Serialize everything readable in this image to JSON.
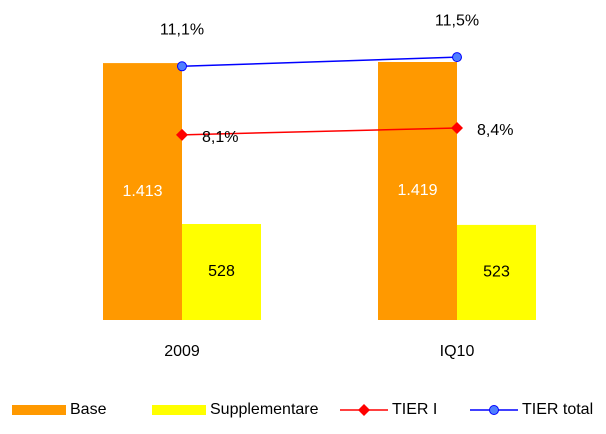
{
  "chart_data": {
    "type": "bar-line",
    "categories": [
      "2009",
      "IQ10"
    ],
    "ylim": [
      0,
      1760
    ],
    "y2lim": [
      0,
      14
    ],
    "legend": "bottom",
    "series": [
      {
        "name": "Base",
        "type": "bar",
        "color": "#ff9900",
        "values": [
          1413,
          1419
        ],
        "value_labels": [
          "1.413",
          "1.419"
        ]
      },
      {
        "name": "Supplementare",
        "type": "bar",
        "color": "#ffff00",
        "values": [
          528,
          523
        ]
      },
      {
        "name": "TIER I",
        "type": "line",
        "axis": "y2",
        "color": "#ff0000",
        "values": [
          8.1,
          8.4
        ],
        "value_labels": [
          "8,1%",
          "8,4%"
        ]
      },
      {
        "name": "TIER total",
        "type": "line",
        "axis": "y2",
        "color": "#0000ff",
        "values": [
          11.1,
          11.5
        ],
        "value_labels": [
          "11,1%",
          "11,5%"
        ]
      }
    ]
  }
}
